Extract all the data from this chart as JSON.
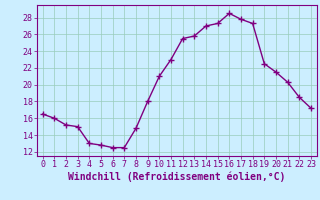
{
  "x": [
    0,
    1,
    2,
    3,
    4,
    5,
    6,
    7,
    8,
    9,
    10,
    11,
    12,
    13,
    14,
    15,
    16,
    17,
    18,
    19,
    20,
    21,
    22,
    23
  ],
  "y": [
    16.5,
    16.0,
    15.2,
    15.0,
    13.0,
    12.8,
    12.5,
    12.5,
    14.8,
    18.0,
    21.0,
    23.0,
    25.5,
    25.8,
    27.0,
    27.3,
    28.5,
    27.8,
    27.3,
    22.5,
    21.5,
    20.3,
    18.5,
    17.2
  ],
  "line_color": "#800080",
  "marker": "+",
  "marker_size": 4,
  "xlabel": "Windchill (Refroidissement éolien,°C)",
  "xlabel_fontsize": 7,
  "ylabel_ticks": [
    12,
    14,
    16,
    18,
    20,
    22,
    24,
    26,
    28
  ],
  "ylim": [
    11.5,
    29.5
  ],
  "xlim": [
    -0.5,
    23.5
  ],
  "bg_color": "#cceeff",
  "grid_color": "#99ccbb",
  "tick_fontsize": 6,
  "linewidth": 1.0
}
